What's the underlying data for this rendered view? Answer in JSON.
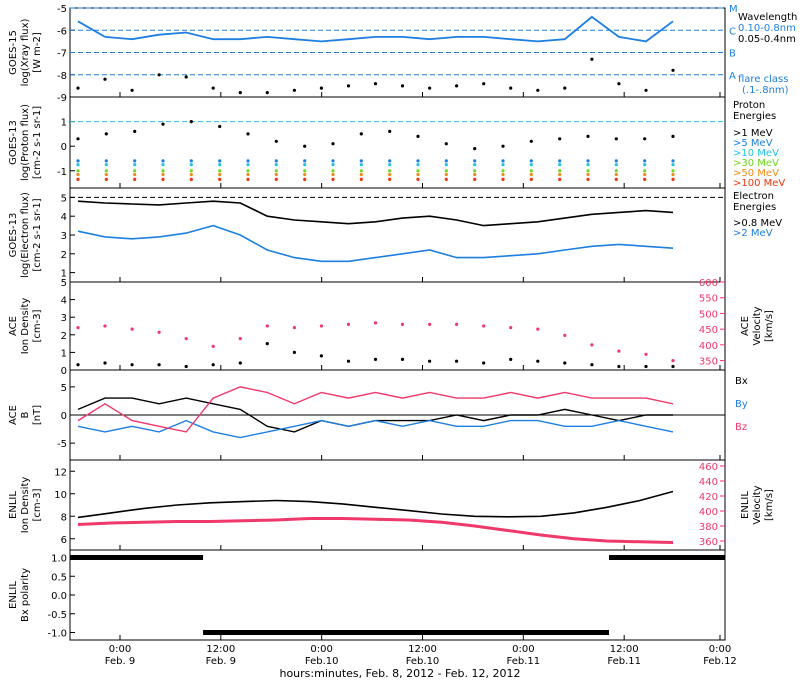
{
  "colors": {
    "black": "#000000",
    "blue": "#1e7fe0",
    "cyan": "#24c3e0",
    "pink": "#f0386a",
    "green": "#6cd81c",
    "yellow": "#e8d400",
    "orange": "#f08a18",
    "red": "#f0340c"
  },
  "footer": {
    "xlabel": "hours:minutes, Feb. 8, 2012 - Feb. 12, 2012",
    "time_labels": [
      "0:00",
      "12:00",
      "0:00",
      "12:00",
      "0:00",
      "12:00",
      "0:00"
    ],
    "date_labels": [
      "Feb. 9",
      "Feb. 9",
      "Feb.10",
      "Feb.10",
      "Feb.11",
      "Feb.11",
      "Feb.12"
    ]
  },
  "chart_data": [
    {
      "type": "line",
      "panel": "goes15-xray",
      "ylabel": [
        "GOES-15",
        "log(Xray flux)",
        "[W m-2]"
      ],
      "y_ticks": [
        "-5",
        "-6",
        "-7",
        "-8",
        "-9"
      ],
      "ylim": [
        -9,
        -5
      ],
      "flare_class_lines": [
        {
          "label": "M",
          "value": -5
        },
        {
          "label": "C",
          "value": -6
        },
        {
          "label": "B",
          "value": -7
        },
        {
          "label": "A",
          "value": -8
        }
      ],
      "legend_title": "Wavelength",
      "legend": [
        "0.10-0.8nm",
        "0.05-0.4nm"
      ],
      "legend_note": [
        "flare class",
        "(.1-.8nm)"
      ],
      "series": [
        {
          "name": "0.10-0.8nm",
          "values": [
            -5.6,
            -6.3,
            -6.4,
            -6.2,
            -6.1,
            -6.4,
            -6.4,
            -6.3,
            -6.4,
            -6.5,
            -6.4,
            -6.3,
            -6.3,
            -6.4,
            -6.3,
            -6.3,
            -6.4,
            -6.5,
            -6.4,
            -5.4,
            -6.3,
            -6.5,
            -5.6
          ]
        },
        {
          "name": "0.05-0.4nm",
          "values": [
            -8.6,
            -8.2,
            -8.7,
            -8.0,
            -8.1,
            -8.6,
            -8.8,
            -8.8,
            -8.7,
            -8.6,
            -8.5,
            -8.4,
            -8.5,
            -8.6,
            -8.5,
            -8.4,
            -8.6,
            -8.7,
            -8.6,
            -7.3,
            -8.4,
            -8.7,
            -7.8
          ]
        }
      ]
    },
    {
      "type": "scatter",
      "panel": "goes13-proton",
      "ylabel": [
        "GOES-13",
        "log(Proton flux)",
        "[cm-2 s-1 sr-1]"
      ],
      "y_ticks": [
        "1",
        "0",
        "-1"
      ],
      "ylim": [
        -1.7,
        2.0
      ],
      "legend_title": [
        "Proton",
        "Energies"
      ],
      "legend": [
        ">1 MeV",
        ">5 MeV",
        ">10 MeV",
        ">30 MeV",
        ">50 MeV",
        ">100 MeV"
      ],
      "series": [
        {
          "name": ">1 MeV",
          "values": [
            0.3,
            0.5,
            0.6,
            0.9,
            1.0,
            0.8,
            0.5,
            0.2,
            0.0,
            0.1,
            0.5,
            0.6,
            0.4,
            0.1,
            -0.1,
            0.0,
            0.2,
            0.3,
            0.4,
            0.3,
            0.3,
            0.4
          ]
        },
        {
          "name": ">5 MeV",
          "values": [
            -0.6,
            -0.6,
            -0.6,
            -0.6,
            -0.6,
            -0.6,
            -0.6,
            -0.6,
            -0.6,
            -0.6,
            -0.6,
            -0.6,
            -0.6,
            -0.6,
            -0.6,
            -0.6,
            -0.6,
            -0.6,
            -0.6,
            -0.6,
            -0.6,
            -0.6
          ]
        },
        {
          "name": ">10 MeV",
          "values": [
            -0.75,
            -0.75,
            -0.75,
            -0.75,
            -0.75,
            -0.75,
            -0.75,
            -0.75,
            -0.75,
            -0.75,
            -0.75,
            -0.75,
            -0.75,
            -0.75,
            -0.75,
            -0.75,
            -0.75,
            -0.75,
            -0.75,
            -0.75,
            -0.75,
            -0.75
          ]
        },
        {
          "name": ">30 MeV",
          "values": [
            -1.0,
            -1.0,
            -1.0,
            -1.0,
            -1.0,
            -1.0,
            -1.0,
            -1.0,
            -1.0,
            -1.0,
            -1.0,
            -1.0,
            -1.0,
            -1.0,
            -1.0,
            -1.0,
            -1.0,
            -1.0,
            -1.0,
            -1.0,
            -1.0,
            -1.0
          ]
        },
        {
          "name": ">50 MeV",
          "values": [
            -1.15,
            -1.15,
            -1.15,
            -1.15,
            -1.15,
            -1.15,
            -1.15,
            -1.15,
            -1.15,
            -1.15,
            -1.15,
            -1.15,
            -1.15,
            -1.15,
            -1.15,
            -1.15,
            -1.15,
            -1.15,
            -1.15,
            -1.15,
            -1.15,
            -1.15
          ]
        },
        {
          "name": ">100 MeV",
          "values": [
            -1.35,
            -1.35,
            -1.35,
            -1.35,
            -1.35,
            -1.35,
            -1.35,
            -1.35,
            -1.35,
            -1.35,
            -1.35,
            -1.35,
            -1.35,
            -1.35,
            -1.35,
            -1.35,
            -1.35,
            -1.35,
            -1.35,
            -1.35,
            -1.35,
            -1.35
          ]
        }
      ],
      "reference_line": 1
    },
    {
      "type": "line",
      "panel": "goes13-electron",
      "ylabel": [
        "GOES-13",
        "log(Electron flux)",
        "[cm-2 s-1 sr-1]"
      ],
      "y_ticks": [
        "5",
        "4",
        "3",
        "2",
        "1"
      ],
      "ylim": [
        0.5,
        5.5
      ],
      "legend_title": [
        "Electron",
        "Energies"
      ],
      "legend": [
        ">0.8 MeV",
        ">2 MeV"
      ],
      "reference_line": 5,
      "series": [
        {
          "name": ">0.8 MeV",
          "values": [
            4.8,
            4.7,
            4.65,
            4.6,
            4.7,
            4.8,
            4.7,
            4.0,
            3.8,
            3.7,
            3.6,
            3.7,
            3.9,
            4.0,
            3.8,
            3.5,
            3.6,
            3.7,
            3.9,
            4.1,
            4.2,
            4.3,
            4.2
          ]
        },
        {
          "name": ">2 MeV",
          "values": [
            3.2,
            2.9,
            2.8,
            2.9,
            3.1,
            3.5,
            3.0,
            2.2,
            1.8,
            1.6,
            1.6,
            1.8,
            2.0,
            2.2,
            1.8,
            1.8,
            1.9,
            2.0,
            2.2,
            2.4,
            2.5,
            2.4,
            2.3
          ]
        }
      ]
    },
    {
      "type": "scatter",
      "panel": "ace-density-velocity",
      "ylabel": [
        "ACE",
        "Ion Density",
        "[cm-3]"
      ],
      "y_ticks": [
        "5",
        "4",
        "3",
        "2",
        "1",
        "0"
      ],
      "ylim": [
        0,
        5
      ],
      "y2label": [
        "ACE",
        "Velocity",
        "[km/s]"
      ],
      "y2_ticks": [
        "600",
        "550",
        "500",
        "450",
        "400",
        "350"
      ],
      "y2lim": [
        320,
        600
      ],
      "series": [
        {
          "name": "Ion Density",
          "axis": "left",
          "values": [
            0.3,
            0.4,
            0.3,
            0.3,
            0.2,
            0.3,
            0.4,
            1.5,
            1.0,
            0.8,
            0.5,
            0.6,
            0.6,
            0.5,
            0.5,
            0.4,
            0.6,
            0.5,
            0.4,
            0.3,
            0.2,
            0.2,
            0.2
          ]
        },
        {
          "name": "Velocity",
          "axis": "right",
          "values": [
            455,
            460,
            450,
            440,
            420,
            395,
            420,
            460,
            455,
            460,
            465,
            470,
            465,
            465,
            465,
            460,
            455,
            450,
            430,
            400,
            380,
            370,
            350
          ]
        }
      ]
    },
    {
      "type": "scatter",
      "panel": "ace-b",
      "ylabel": [
        "ACE",
        "B",
        "[nT]"
      ],
      "y_ticks": [
        "5",
        "0",
        "-5"
      ],
      "ylim": [
        -8,
        8
      ],
      "legend": [
        "Bx",
        "By",
        "Bz"
      ],
      "series": [
        {
          "name": "Bx",
          "values": [
            1,
            3,
            3,
            2,
            3,
            2,
            1,
            -2,
            -3,
            -1,
            -2,
            -1,
            -1,
            -1,
            0,
            -1,
            0,
            0,
            1,
            0,
            -1,
            0,
            0
          ]
        },
        {
          "name": "By",
          "values": [
            -2,
            -3,
            -2,
            -3,
            -1,
            -3,
            -4,
            -3,
            -2,
            -1,
            -2,
            -1,
            -2,
            -1,
            -2,
            -2,
            -1,
            -1,
            -2,
            -2,
            -1,
            -2,
            -3
          ]
        },
        {
          "name": "Bz",
          "values": [
            -1,
            2,
            -1,
            -2,
            -3,
            3,
            5,
            4,
            2,
            4,
            3,
            4,
            3,
            4,
            3,
            3,
            4,
            3,
            4,
            3,
            3,
            3,
            2
          ]
        }
      ]
    },
    {
      "type": "line",
      "panel": "enlil",
      "ylabel": [
        "ENLIL",
        "Ion Density",
        "[cm-3]"
      ],
      "y_ticks": [
        "12",
        "10",
        "8",
        "6"
      ],
      "ylim": [
        5,
        13
      ],
      "y2label": [
        "ENLIL",
        "Velocity",
        "[km/s]"
      ],
      "y2_ticks": [
        "460",
        "440",
        "420",
        "400",
        "380",
        "360"
      ],
      "y2lim": [
        348,
        468
      ],
      "series": [
        {
          "name": "Ion Density",
          "axis": "left",
          "values": [
            7.9,
            8.3,
            8.7,
            9.0,
            9.2,
            9.3,
            9.4,
            9.3,
            9.1,
            8.8,
            8.5,
            8.2,
            8.0,
            7.95,
            8.0,
            8.3,
            8.8,
            9.4,
            10.2
          ]
        },
        {
          "name": "Velocity",
          "axis": "right",
          "values": [
            382,
            384,
            385,
            386,
            386,
            387,
            388,
            390,
            390,
            389,
            388,
            385,
            380,
            374,
            368,
            363,
            360,
            359,
            358
          ]
        }
      ]
    },
    {
      "type": "line",
      "panel": "enlil-polarity",
      "ylabel": [
        "ENLIL",
        "Bx polarity"
      ],
      "y_ticks": [
        "1.0",
        "0.5",
        "0.0",
        "-0.5",
        "-1.0"
      ],
      "ylim": [
        -1.2,
        1.2
      ],
      "segments": [
        {
          "from_hour": 0,
          "to_hour": 19.5,
          "value": 1
        },
        {
          "from_hour": 19.5,
          "to_hour": 79,
          "value": -1
        },
        {
          "from_hour": 79,
          "to_hour": 96,
          "value": 1
        }
      ]
    }
  ]
}
